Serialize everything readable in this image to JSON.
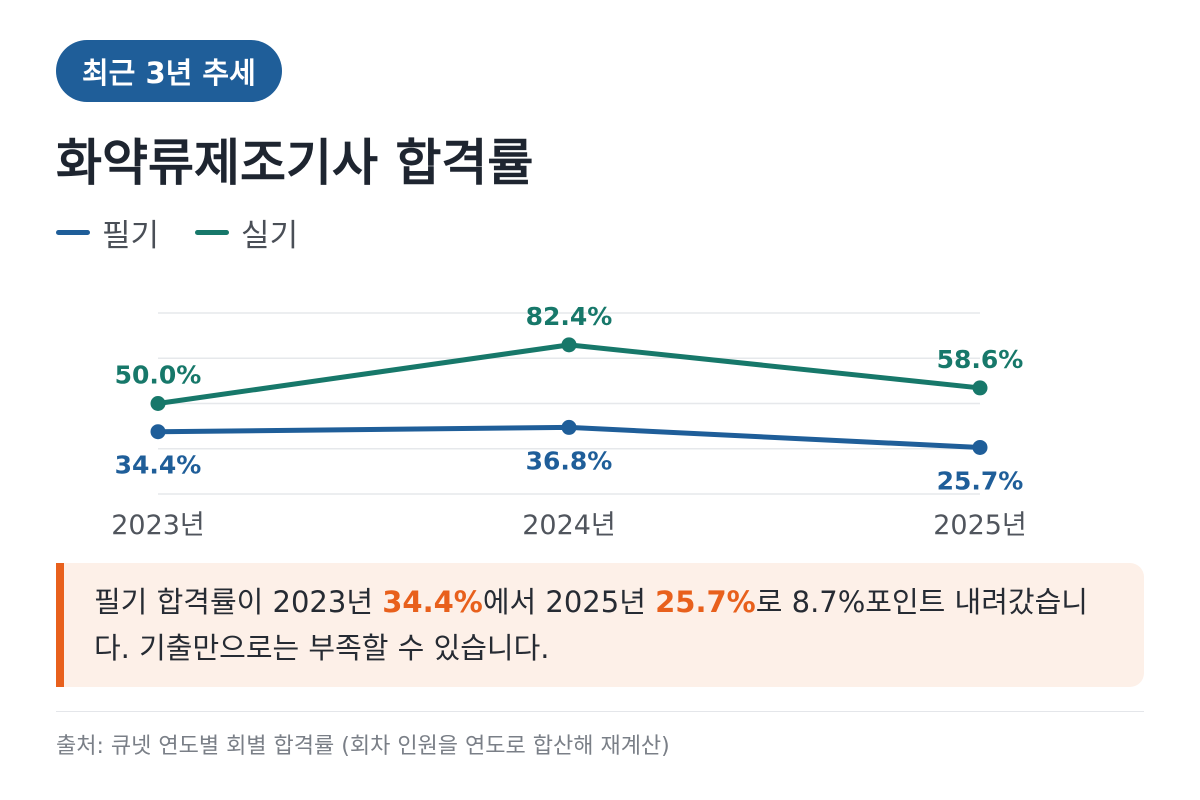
{
  "badge": "최근 3년 추세",
  "title": "화약류제조기사 합격률",
  "colors": {
    "written": "#1f5e99",
    "practical": "#17786a",
    "highlight": "#e8601c"
  },
  "chart_data": {
    "type": "line",
    "categories": [
      "2023년",
      "2024년",
      "2025년"
    ],
    "series": [
      {
        "name": "필기",
        "values": [
          34.4,
          36.8,
          25.7
        ],
        "labels": [
          "34.4%",
          "36.8%",
          "25.7%"
        ],
        "color": "#1f5e99"
      },
      {
        "name": "실기",
        "values": [
          50.0,
          82.4,
          58.6
        ],
        "labels": [
          "50.0%",
          "82.4%",
          "58.6%"
        ],
        "color": "#17786a"
      }
    ],
    "ylim": [
      0,
      100
    ],
    "grid": true,
    "legend": "top-left"
  },
  "note": {
    "p1": "필기 합격률이 2023년 ",
    "v1": "34.4%",
    "p2": "에서 2025년 ",
    "v2": "25.7%",
    "p3": "로 8.7%포인트 내려갔습니다. 기출만으로는 부족할 수 있습니다."
  },
  "source": "출처: 큐넷 연도별 회별 합격률 (회차 인원을 연도로 합산해 재계산)"
}
